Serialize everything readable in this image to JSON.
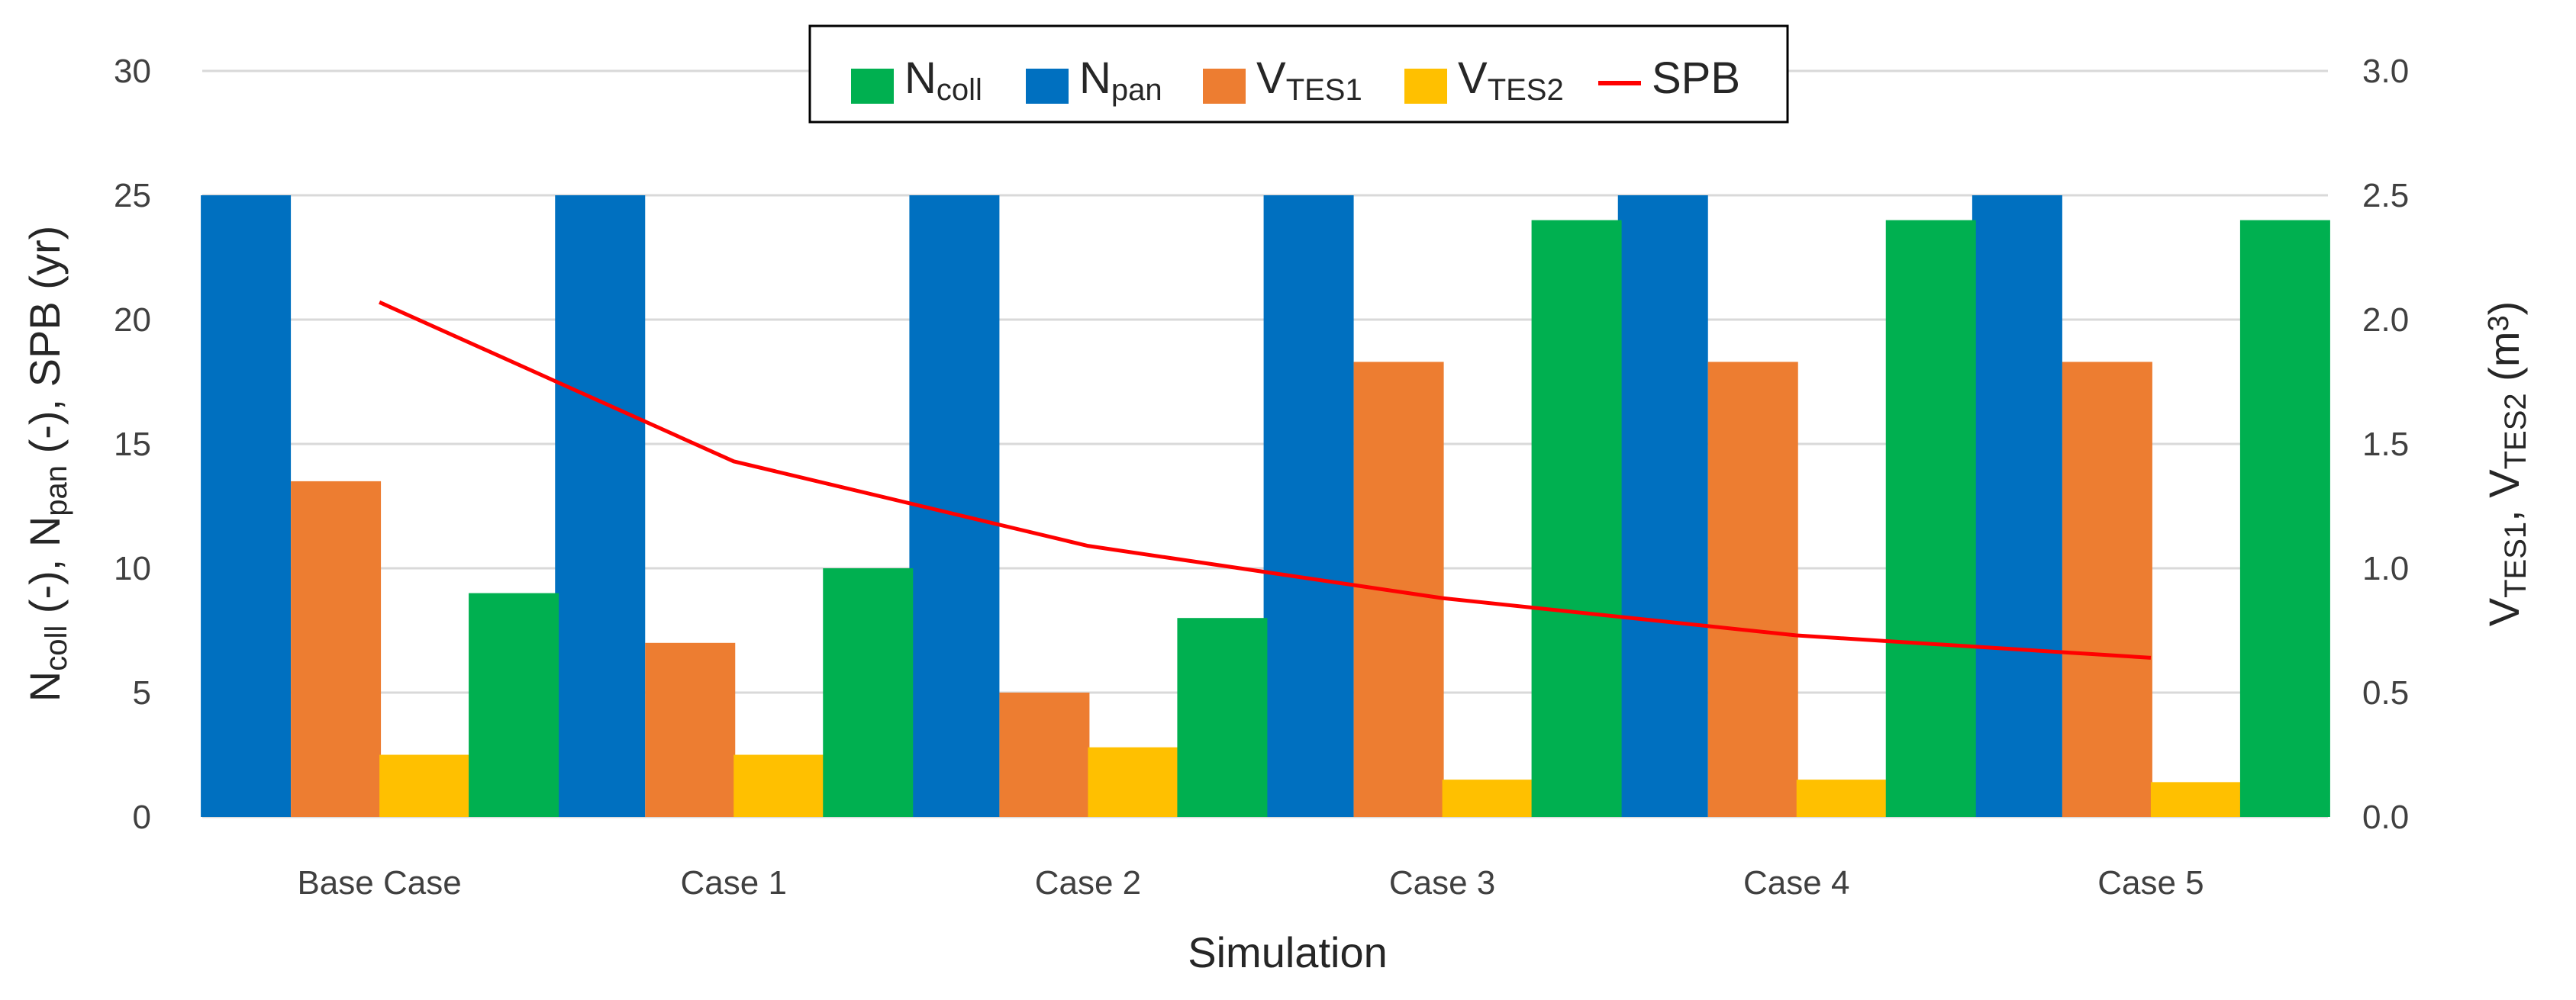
{
  "chart_data": {
    "type": "bar",
    "xlabel": "Simulation",
    "ylabel_left": {
      "parts": [
        [
          "N",
          ""
        ],
        [
          "coll",
          "sub"
        ],
        [
          " (-), N",
          ""
        ],
        [
          "pan",
          "sub"
        ],
        [
          " (-), SPB (yr)",
          ""
        ]
      ]
    },
    "ylabel_right": {
      "parts": [
        [
          "V",
          ""
        ],
        [
          "TES1",
          "sub"
        ],
        [
          ", V",
          ""
        ],
        [
          "TES2",
          "sub"
        ],
        [
          " (m",
          ""
        ],
        [
          "3",
          "sup"
        ],
        [
          ")",
          ""
        ]
      ]
    },
    "ylim_left": [
      0,
      30
    ],
    "ylim_right": [
      0,
      3.0
    ],
    "yticks_left": [
      "0",
      "5",
      "10",
      "15",
      "20",
      "25",
      "30"
    ],
    "yticks_right": [
      "0.0",
      "0.5",
      "1.0",
      "1.5",
      "2.0",
      "2.5",
      "3.0"
    ],
    "categories": [
      "Base Case",
      "Case 1",
      "Case 2",
      "Case 3",
      "Case 4",
      "Case 5"
    ],
    "series": [
      {
        "name": "N_pan",
        "label_main": "N",
        "label_sub": "pan",
        "kind": "bar",
        "axis": "left",
        "color": "#0070c0",
        "values": [
          25,
          25,
          25,
          25,
          25,
          25
        ]
      },
      {
        "name": "V_TES1",
        "label_main": "V",
        "label_sub": "TES1",
        "kind": "bar",
        "axis": "right",
        "color": "#ed7d31",
        "values": [
          1.35,
          0.7,
          0.5,
          1.83,
          1.83,
          1.83
        ]
      },
      {
        "name": "V_TES2",
        "label_main": "V",
        "label_sub": "TES2",
        "kind": "bar",
        "axis": "right",
        "color": "#ffc000",
        "values": [
          0.25,
          0.25,
          0.28,
          0.15,
          0.15,
          0.14
        ]
      },
      {
        "name": "N_coll",
        "label_main": "N",
        "label_sub": "coll",
        "kind": "bar",
        "axis": "left",
        "color": "#00b050",
        "values": [
          9,
          10,
          8,
          24,
          24,
          24
        ]
      },
      {
        "name": "SPB",
        "label_main": "SPB",
        "label_sub": "",
        "kind": "line",
        "axis": "left",
        "color": "#ff0000",
        "values": [
          20.7,
          14.3,
          10.9,
          8.8,
          7.3,
          6.4
        ]
      }
    ],
    "legend_order": [
      "N_coll",
      "N_pan",
      "V_TES1",
      "V_TES2",
      "SPB"
    ],
    "legend_position": "top-center",
    "grid": true
  }
}
